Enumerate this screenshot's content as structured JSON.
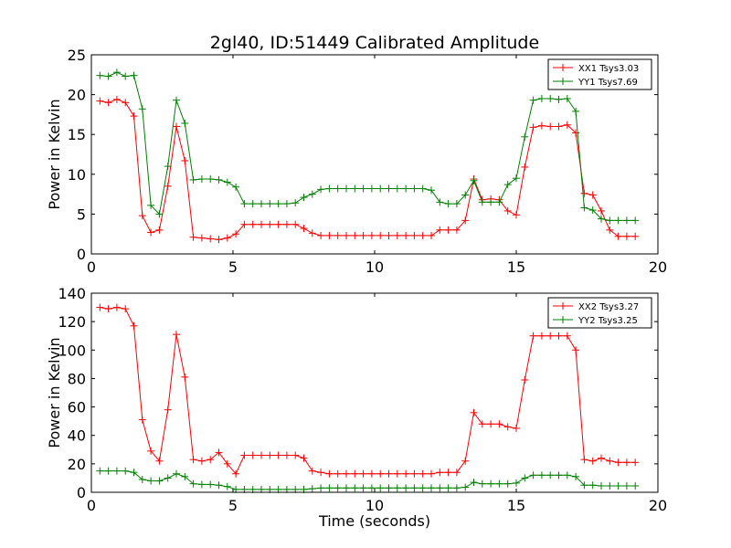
{
  "figure": {
    "title": "2gl40, ID:51449 Calibrated Amplitude",
    "xlabel": "Time (seconds)"
  },
  "chart_data": [
    {
      "type": "line",
      "title": "2gl40, ID:51449 Calibrated Amplitude",
      "xlabel": "",
      "ylabel": "Power in Kelvin",
      "xlim": [
        0,
        20
      ],
      "ylim": [
        0,
        25
      ],
      "xticks": [
        0,
        5,
        10,
        15,
        20
      ],
      "yticks": [
        0,
        5,
        10,
        15,
        20,
        25
      ],
      "grid": false,
      "legend": "top-right",
      "series": [
        {
          "name": "XX1 Tsys3.03",
          "color": "#ff0000",
          "marker": "+",
          "x": [
            0.3,
            0.6,
            0.9,
            1.2,
            1.5,
            1.8,
            2.1,
            2.4,
            2.7,
            3.0,
            3.3,
            3.6,
            3.9,
            4.2,
            4.5,
            4.8,
            5.1,
            5.4,
            5.7,
            6.0,
            6.3,
            6.6,
            6.9,
            7.2,
            7.5,
            7.8,
            8.1,
            8.4,
            8.7,
            9.0,
            9.3,
            9.6,
            9.9,
            10.2,
            10.5,
            10.8,
            11.1,
            11.4,
            11.7,
            12.0,
            12.3,
            12.6,
            12.9,
            13.2,
            13.5,
            13.8,
            14.1,
            14.4,
            14.7,
            15.0,
            15.3,
            15.6,
            15.9,
            16.2,
            16.5,
            16.8,
            17.1,
            17.4,
            17.7,
            18.0,
            18.3,
            18.6,
            18.9,
            19.2
          ],
          "y": [
            19.2,
            19.0,
            19.4,
            19.0,
            17.3,
            4.8,
            2.7,
            3.0,
            8.5,
            16.0,
            11.7,
            2.1,
            2.0,
            1.9,
            1.8,
            2.0,
            2.5,
            3.7,
            3.7,
            3.7,
            3.7,
            3.7,
            3.7,
            3.7,
            3.2,
            2.6,
            2.3,
            2.3,
            2.3,
            2.3,
            2.3,
            2.3,
            2.3,
            2.3,
            2.3,
            2.3,
            2.3,
            2.3,
            2.3,
            2.3,
            3.0,
            3.0,
            3.0,
            4.2,
            9.4,
            6.8,
            6.9,
            6.8,
            5.4,
            4.9,
            10.9,
            15.9,
            16.1,
            16.0,
            16.0,
            16.2,
            15.2,
            7.6,
            7.4,
            5.4,
            3.0,
            2.2,
            2.2,
            2.2
          ]
        },
        {
          "name": "YY1 Tsys7.69",
          "color": "#008000",
          "marker": "+",
          "x": [
            0.3,
            0.6,
            0.9,
            1.2,
            1.5,
            1.8,
            2.1,
            2.4,
            2.7,
            3.0,
            3.3,
            3.6,
            3.9,
            4.2,
            4.5,
            4.8,
            5.1,
            5.4,
            5.7,
            6.0,
            6.3,
            6.6,
            6.9,
            7.2,
            7.5,
            7.8,
            8.1,
            8.4,
            8.7,
            9.0,
            9.3,
            9.6,
            9.9,
            10.2,
            10.5,
            10.8,
            11.1,
            11.4,
            11.7,
            12.0,
            12.3,
            12.6,
            12.9,
            13.2,
            13.5,
            13.8,
            14.1,
            14.4,
            14.7,
            15.0,
            15.3,
            15.6,
            15.9,
            16.2,
            16.5,
            16.8,
            17.1,
            17.4,
            17.7,
            18.0,
            18.3,
            18.6,
            18.9,
            19.2
          ],
          "y": [
            22.4,
            22.3,
            22.8,
            22.3,
            22.4,
            18.2,
            6.1,
            5.0,
            11.0,
            19.3,
            16.4,
            9.3,
            9.4,
            9.4,
            9.3,
            9.0,
            8.4,
            6.3,
            6.3,
            6.3,
            6.3,
            6.3,
            6.3,
            6.4,
            7.1,
            7.5,
            8.1,
            8.2,
            8.2,
            8.2,
            8.2,
            8.2,
            8.2,
            8.2,
            8.2,
            8.2,
            8.2,
            8.2,
            8.2,
            8.0,
            6.5,
            6.3,
            6.3,
            7.4,
            9.2,
            6.5,
            6.5,
            6.5,
            8.7,
            9.5,
            14.7,
            19.3,
            19.5,
            19.5,
            19.4,
            19.5,
            17.9,
            5.8,
            5.5,
            4.4,
            4.2,
            4.2,
            4.2,
            4.2
          ]
        }
      ]
    },
    {
      "type": "line",
      "title": "",
      "xlabel": "Time (seconds)",
      "ylabel": "Power in Kelvin",
      "xlim": [
        0,
        20
      ],
      "ylim": [
        0,
        140
      ],
      "xticks": [
        0,
        5,
        10,
        15,
        20
      ],
      "yticks": [
        0,
        20,
        40,
        60,
        80,
        100,
        120,
        140
      ],
      "grid": false,
      "legend": "top-right",
      "series": [
        {
          "name": "XX2 Tsys3.27",
          "color": "#ff0000",
          "marker": "+",
          "x": [
            0.3,
            0.6,
            0.9,
            1.2,
            1.5,
            1.8,
            2.1,
            2.4,
            2.7,
            3.0,
            3.3,
            3.6,
            3.9,
            4.2,
            4.5,
            4.8,
            5.1,
            5.4,
            5.7,
            6.0,
            6.3,
            6.6,
            6.9,
            7.2,
            7.5,
            7.8,
            8.1,
            8.4,
            8.7,
            9.0,
            9.3,
            9.6,
            9.9,
            10.2,
            10.5,
            10.8,
            11.1,
            11.4,
            11.7,
            12.0,
            12.3,
            12.6,
            12.9,
            13.2,
            13.5,
            13.8,
            14.1,
            14.4,
            14.7,
            15.0,
            15.3,
            15.6,
            15.9,
            16.2,
            16.5,
            16.8,
            17.1,
            17.4,
            17.7,
            18.0,
            18.3,
            18.6,
            18.9,
            19.2
          ],
          "y": [
            130,
            129,
            130,
            129,
            117,
            51,
            29,
            22,
            58,
            111,
            81,
            23,
            22,
            23,
            28,
            20,
            13,
            26,
            26,
            26,
            26,
            26,
            26,
            26,
            24,
            15,
            14,
            13,
            13,
            13,
            13,
            13,
            13,
            13,
            13,
            13,
            13,
            13,
            13,
            13,
            14,
            14,
            14,
            22,
            56,
            48,
            48,
            48,
            46,
            45,
            79,
            110,
            110,
            110,
            110,
            110,
            100,
            23,
            22,
            24,
            22,
            21,
            21,
            21
          ]
        },
        {
          "name": "YY2 Tsys3.25",
          "color": "#008000",
          "marker": "+",
          "x": [
            0.3,
            0.6,
            0.9,
            1.2,
            1.5,
            1.8,
            2.1,
            2.4,
            2.7,
            3.0,
            3.3,
            3.6,
            3.9,
            4.2,
            4.5,
            4.8,
            5.1,
            5.4,
            5.7,
            6.0,
            6.3,
            6.6,
            6.9,
            7.2,
            7.5,
            7.8,
            8.1,
            8.4,
            8.7,
            9.0,
            9.3,
            9.6,
            9.9,
            10.2,
            10.5,
            10.8,
            11.1,
            11.4,
            11.7,
            12.0,
            12.3,
            12.6,
            12.9,
            13.2,
            13.5,
            13.8,
            14.1,
            14.4,
            14.7,
            15.0,
            15.3,
            15.6,
            15.9,
            16.2,
            16.5,
            16.8,
            17.1,
            17.4,
            17.7,
            18.0,
            18.3,
            18.6,
            18.9,
            19.2
          ],
          "y": [
            15,
            15,
            15,
            15,
            14,
            9,
            8,
            8,
            10,
            13,
            11,
            6,
            5.5,
            5.5,
            5,
            4,
            2,
            2,
            2,
            2,
            2,
            2,
            2,
            2,
            2,
            2.5,
            3,
            3,
            3,
            3,
            3,
            3,
            3,
            3,
            3,
            3,
            3,
            3,
            3,
            3,
            3,
            3,
            3,
            3.5,
            7,
            6,
            6,
            6,
            6,
            6.5,
            10,
            12,
            12,
            12,
            12,
            12,
            11,
            5,
            5,
            4.5,
            4.5,
            4.5,
            4.5,
            4.5
          ]
        }
      ]
    }
  ]
}
